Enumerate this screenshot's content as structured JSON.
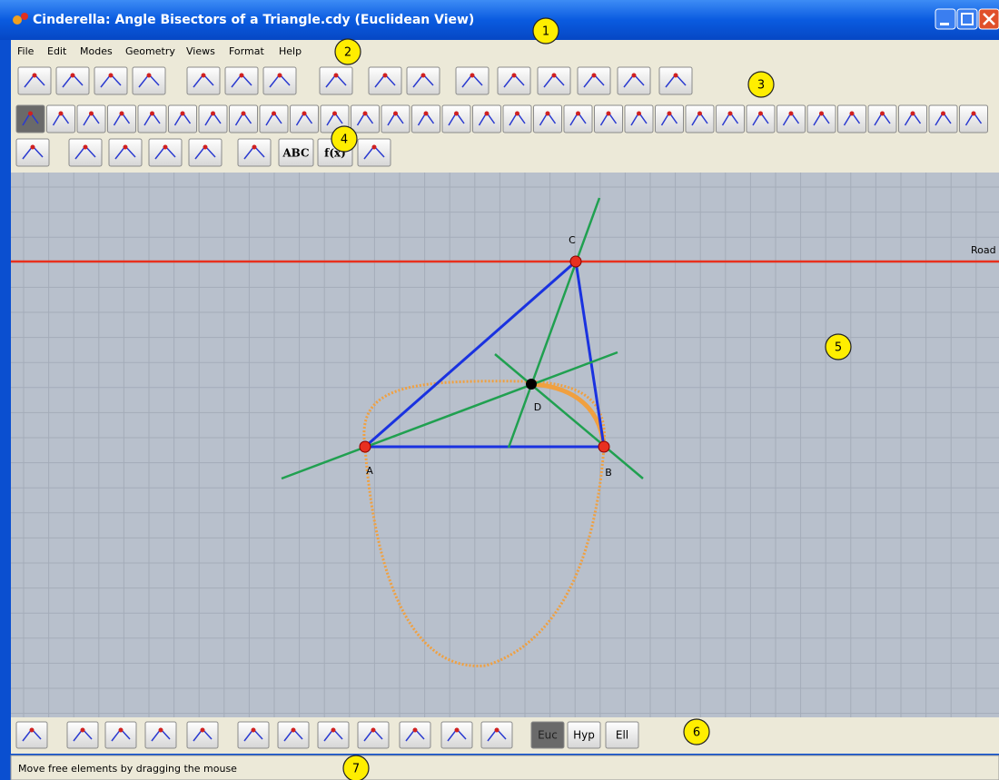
{
  "window": {
    "title": "Cinderella: Angle Bisectors of a Triangle.cdy (Euclidean View)",
    "menu": [
      "File",
      "Edit",
      "Modes",
      "Geometry",
      "Views",
      "Format",
      "Help"
    ]
  },
  "toolbar": {
    "text_buttons": [
      "ABC",
      "f(x)"
    ]
  },
  "canvas": {
    "points": [
      "A",
      "B",
      "C",
      "D"
    ],
    "line_label": "Road"
  },
  "geometry_bar": {
    "views": [
      "Euc",
      "Hyp",
      "Ell"
    ]
  },
  "status": "Move free elements by dragging the mouse",
  "callouts": [
    1,
    2,
    3,
    4,
    5,
    6,
    7
  ]
}
